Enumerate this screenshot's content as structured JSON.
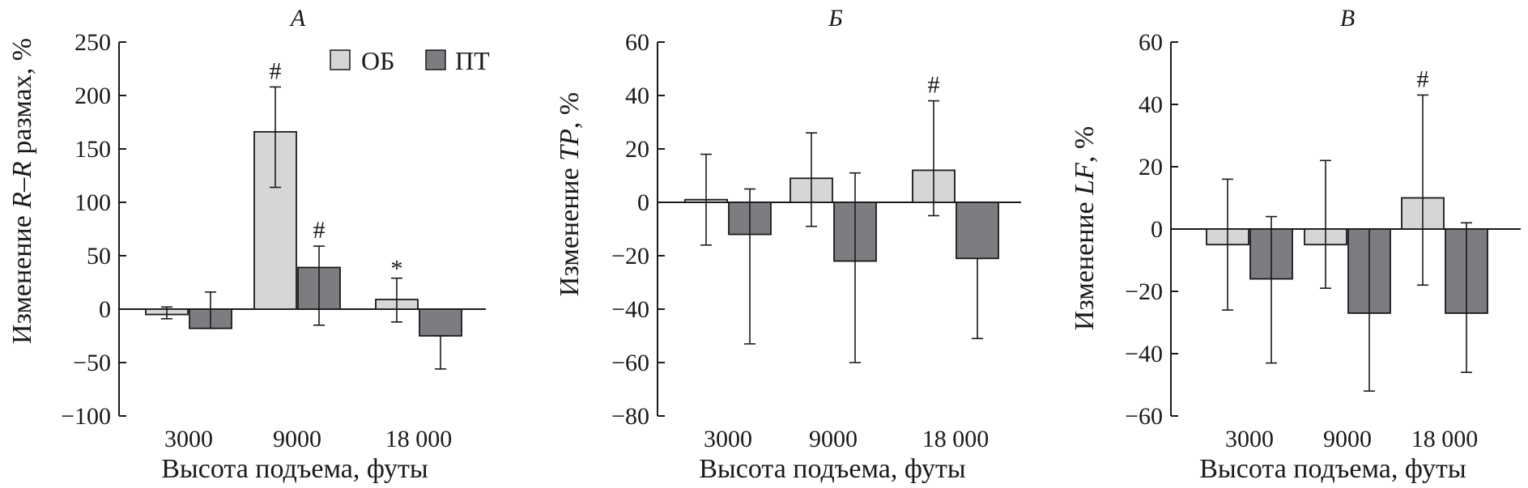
{
  "colors": {
    "ob": "#d4d6d7",
    "pt": "#7c7d80",
    "stroke": "#1a1a1a"
  },
  "legend": {
    "items": [
      {
        "label": "ОБ",
        "color": "#d4d6d7"
      },
      {
        "label": "ПТ",
        "color": "#7c7d80"
      }
    ],
    "placement": "top-right of panel A"
  },
  "chart_data": [
    {
      "type": "bar",
      "title": "А",
      "ylabel": "Изменение R–R размах, %",
      "ylabel_parts": [
        "Изменение ",
        "R",
        "–",
        "R",
        " размах, %"
      ],
      "xlabel": "Высота подъема, футы",
      "categories": [
        "3000",
        "9000",
        "18 000"
      ],
      "ylim": [
        -100,
        250
      ],
      "yticks": [
        -100,
        -50,
        0,
        50,
        100,
        150,
        200,
        250
      ],
      "ytick_labels": [
        "−100",
        "−50",
        "0",
        "50",
        "100",
        "150",
        "200",
        "250"
      ],
      "series": [
        {
          "name": "ОБ",
          "values": [
            -5,
            166,
            9
          ],
          "err_low": [
            -9,
            114,
            -12
          ],
          "err_high": [
            2,
            208,
            29
          ],
          "marks": [
            "",
            "#",
            "*"
          ]
        },
        {
          "name": "ПТ",
          "values": [
            -18,
            39,
            -25
          ],
          "err_low": [
            -18,
            -15,
            -56
          ],
          "err_high": [
            16,
            59,
            -25
          ],
          "marks": [
            "",
            "#",
            ""
          ]
        }
      ]
    },
    {
      "type": "bar",
      "title": "Б",
      "ylabel": "Изменение TP, %",
      "ylabel_parts": [
        "Изменение ",
        "TP",
        ", %"
      ],
      "xlabel": "Высота подъема, футы",
      "categories": [
        "3000",
        "9000",
        "18 000"
      ],
      "ylim": [
        -80,
        60
      ],
      "yticks": [
        -80,
        -60,
        -40,
        -20,
        0,
        20,
        40,
        60
      ],
      "ytick_labels": [
        "−80",
        "−60",
        "−40",
        "−20",
        "0",
        "20",
        "40",
        "60"
      ],
      "series": [
        {
          "name": "ОБ",
          "values": [
            1,
            9,
            12
          ],
          "err_low": [
            -16,
            -9,
            -5
          ],
          "err_high": [
            18,
            26,
            38
          ],
          "marks": [
            "",
            "",
            "#"
          ]
        },
        {
          "name": "ПТ",
          "values": [
            -12,
            -22,
            -21
          ],
          "err_low": [
            -53,
            -60,
            -51
          ],
          "err_high": [
            5,
            11,
            -21
          ],
          "marks": [
            "",
            "",
            ""
          ]
        }
      ]
    },
    {
      "type": "bar",
      "title": "В",
      "ylabel": "Изменение LF, %",
      "ylabel_parts": [
        "Изменение ",
        "LF",
        ", %"
      ],
      "xlabel": "Высота подъема, футы",
      "categories": [
        "3000",
        "9000",
        "18 000"
      ],
      "ylim": [
        -60,
        60
      ],
      "yticks": [
        -60,
        -40,
        -20,
        0,
        20,
        40,
        60
      ],
      "ytick_labels": [
        "−60",
        "−40",
        "−20",
        "0",
        "20",
        "40",
        "60"
      ],
      "series": [
        {
          "name": "ОБ",
          "values": [
            -5,
            -5,
            10
          ],
          "err_low": [
            -26,
            -19,
            -18
          ],
          "err_high": [
            16,
            22,
            43
          ],
          "marks": [
            "",
            "",
            "#"
          ]
        },
        {
          "name": "ПТ",
          "values": [
            -16,
            -27,
            -27
          ],
          "err_low": [
            -43,
            -52,
            -46
          ],
          "err_high": [
            4,
            0,
            2
          ],
          "marks": [
            "",
            "",
            ""
          ]
        }
      ]
    }
  ]
}
